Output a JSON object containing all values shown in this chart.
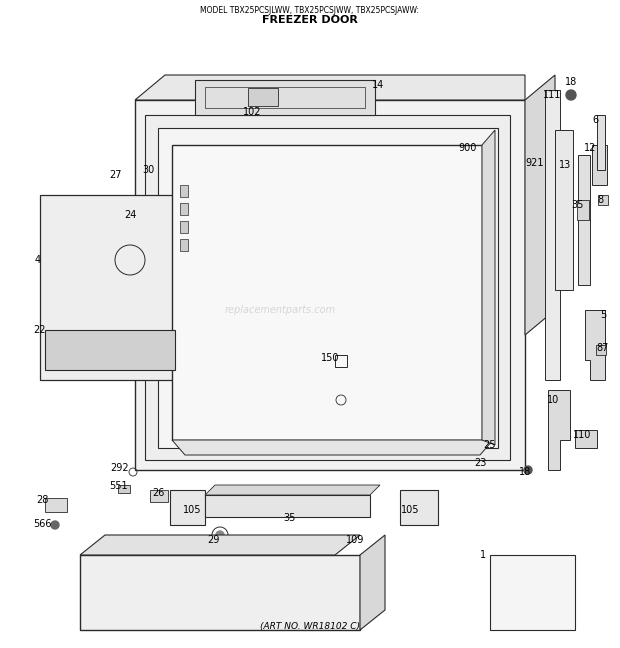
{
  "title_line1": "MODEL TBX25PCSJLWW, TBX25PCSJWW, TBX25PCSJAWW:",
  "title_line2": "FREEZER DOOR",
  "art_no": "(ART NO. WR18102 C)",
  "bg_color": "#ffffff",
  "watermark": "replacementparts.com",
  "line_color": "#2a2a2a",
  "fill_light": "#f0f0f0",
  "fill_mid": "#e0e0e0",
  "fill_dark": "#c8c8c8"
}
